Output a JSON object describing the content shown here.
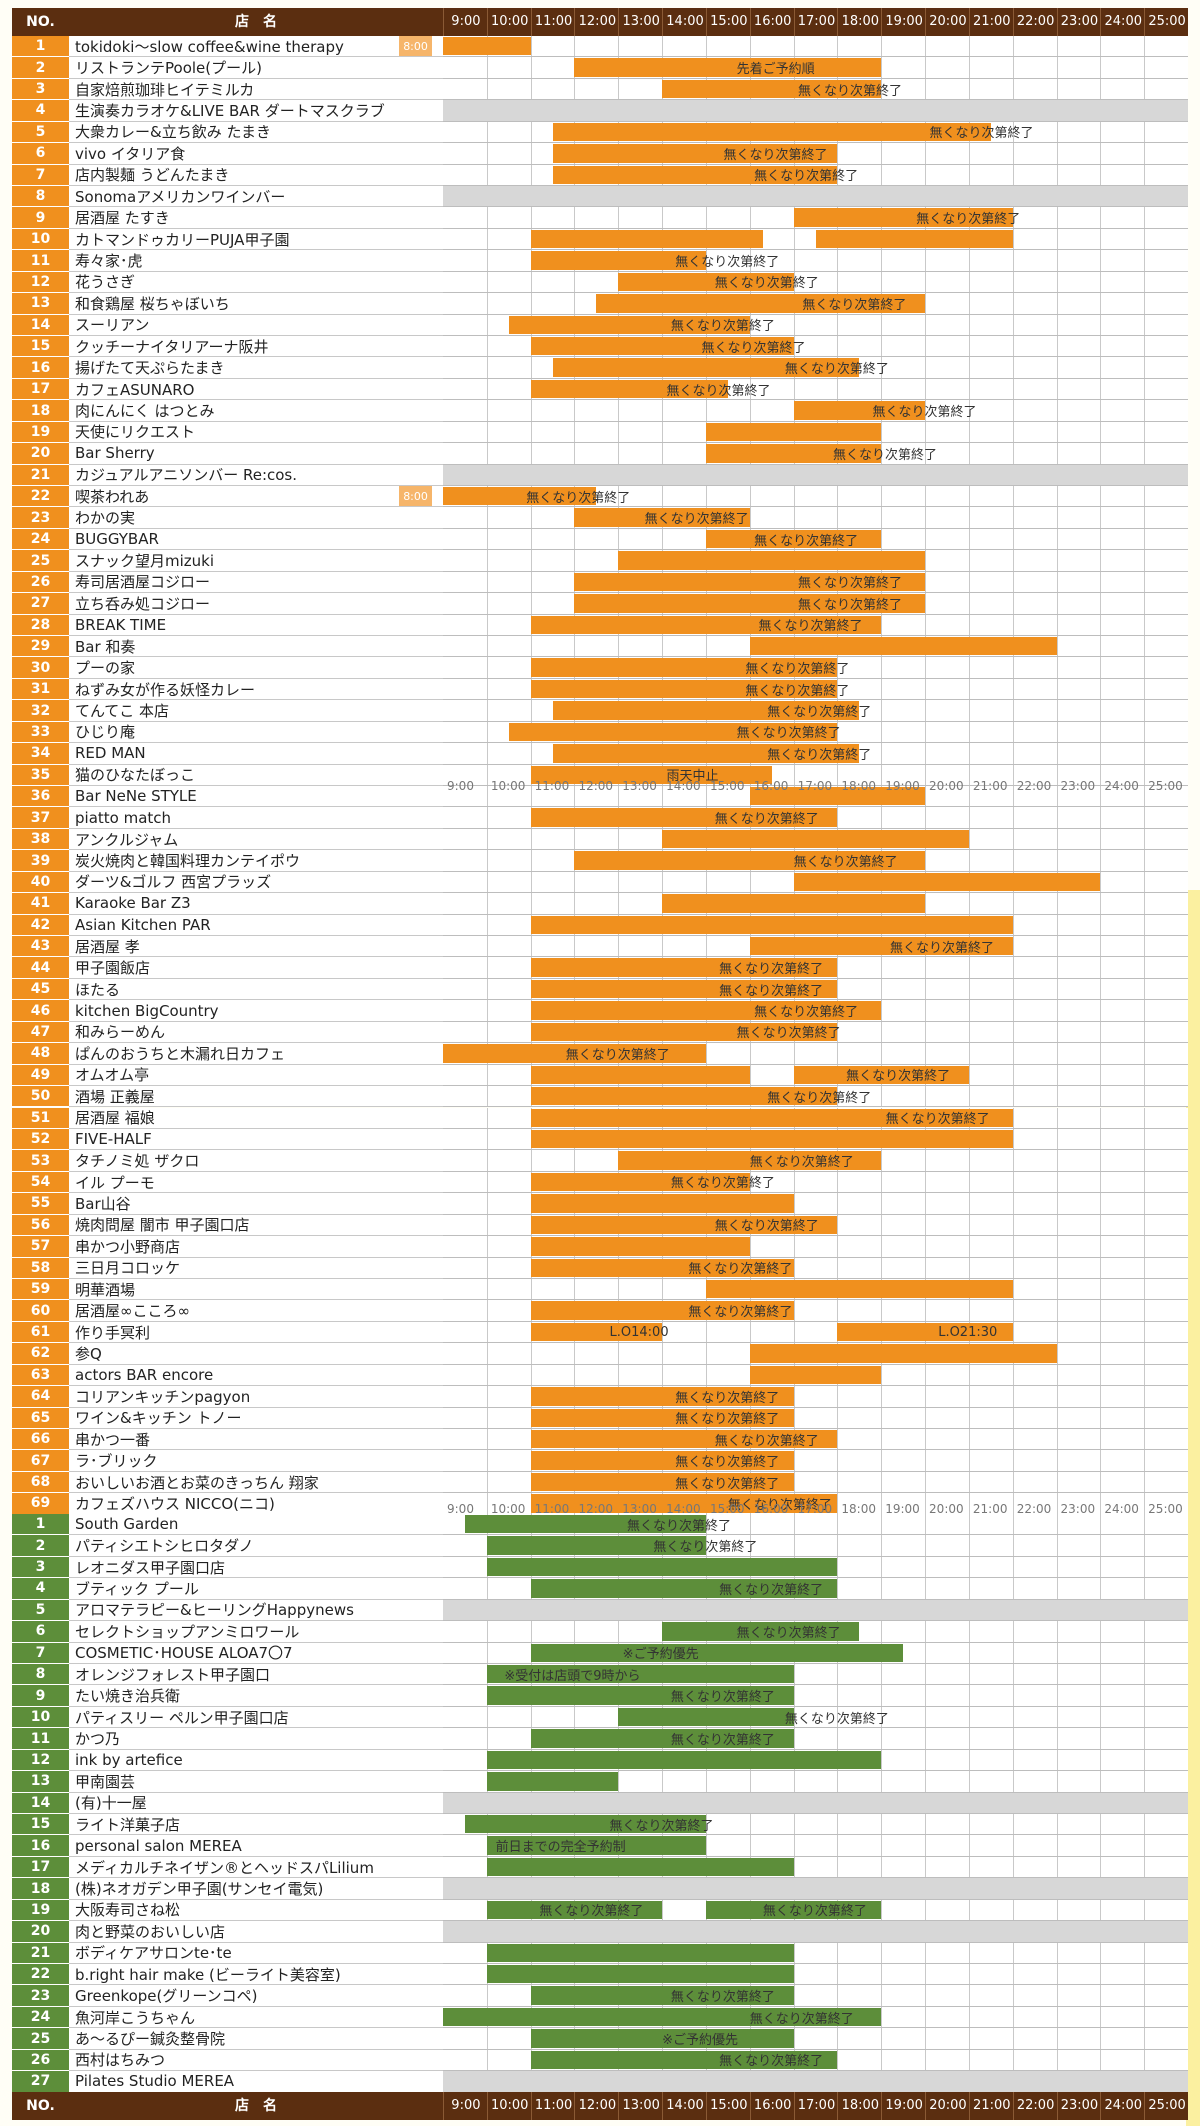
{
  "header": {
    "no": "NO.",
    "name": "店　名",
    "hours": [
      "9:00",
      "10:00",
      "11:00",
      "12:00",
      "13:00",
      "14:00",
      "15:00",
      "16:00",
      "17:00",
      "18:00",
      "19:00",
      "20:00",
      "21:00",
      "22:00",
      "23:00",
      "24:00",
      "25:00"
    ]
  },
  "colors": {
    "orange": "#f0901e",
    "green": "#5d8e3a",
    "header": "#5b2e10",
    "closed": "#d7d7d7"
  },
  "orange_rows": [
    {
      "no": "1",
      "name": "tokidoki～slow coffee&wine therapy",
      "bars": [
        [
          9,
          11
        ]
      ],
      "notes": [
        {
          "t": "8:00",
          "at": 8
        }
      ]
    },
    {
      "no": "2",
      "name": "リストランテPoole(プール)",
      "bars": [
        [
          12,
          19
        ]
      ],
      "notes": [
        {
          "t": "先着ご予約順",
          "at": 15.7
        }
      ]
    },
    {
      "no": "3",
      "name": "自家焙煎珈琲ヒイテミルカ",
      "bars": [
        [
          14,
          19
        ]
      ],
      "notes": [
        {
          "t": "無くなり次第終了",
          "at": 17.1
        }
      ]
    },
    {
      "no": "4",
      "name": "生演奏カラオケ&LIVE BAR ダートマスクラブ",
      "closed": true
    },
    {
      "no": "5",
      "name": "大衆カレー&立ち飲み たまき",
      "bars": [
        [
          11.5,
          21.5
        ]
      ],
      "notes": [
        {
          "t": "無くなり次第終了",
          "at": 20.1
        }
      ]
    },
    {
      "no": "6",
      "name": "vivo イタリア食",
      "bars": [
        [
          11.5,
          18
        ]
      ],
      "notes": [
        {
          "t": "無くなり次第終了",
          "at": 15.4
        }
      ]
    },
    {
      "no": "7",
      "name": "店内製麺 うどんたまき",
      "bars": [
        [
          11.5,
          18
        ]
      ],
      "notes": [
        {
          "t": "無くなり次第終了",
          "at": 16.1
        }
      ]
    },
    {
      "no": "8",
      "name": "Sonomaアメリカンワインバー",
      "closed": true
    },
    {
      "no": "9",
      "name": "居酒屋 たすき",
      "bars": [
        [
          17,
          22
        ]
      ],
      "notes": [
        {
          "t": "無くなり次第終了",
          "at": 19.8
        }
      ]
    },
    {
      "no": "10",
      "name": "カトマンドゥカリーPUJA甲子園",
      "bars": [
        [
          11,
          16.3
        ],
        [
          17.5,
          22
        ]
      ],
      "notes": []
    },
    {
      "no": "11",
      "name": "寿々家･虎",
      "bars": [
        [
          11,
          15
        ]
      ],
      "notes": [
        {
          "t": "無くなり次第終了",
          "at": 14.3
        }
      ]
    },
    {
      "no": "12",
      "name": "花うさぎ",
      "bars": [
        [
          13,
          17
        ]
      ],
      "notes": [
        {
          "t": "無くなり次第終了",
          "at": 15.2
        }
      ]
    },
    {
      "no": "13",
      "name": "和食鶏屋 桜ちゃぼいち",
      "bars": [
        [
          12.5,
          20
        ]
      ],
      "notes": [
        {
          "t": "無くなり次第終了",
          "at": 17.2
        }
      ]
    },
    {
      "no": "14",
      "name": "スーリアン",
      "bars": [
        [
          10.5,
          16
        ]
      ],
      "notes": [
        {
          "t": "無くなり次第終了",
          "at": 14.2
        }
      ]
    },
    {
      "no": "15",
      "name": "クッチーナイタリアーナ阪井",
      "bars": [
        [
          11,
          17
        ]
      ],
      "notes": [
        {
          "t": "無くなり次第終了",
          "at": 14.9
        }
      ]
    },
    {
      "no": "16",
      "name": "揚げたて天ぷらたまき",
      "bars": [
        [
          11.5,
          18.5
        ]
      ],
      "notes": [
        {
          "t": "無くなり次第終了",
          "at": 16.8
        }
      ]
    },
    {
      "no": "17",
      "name": "カフェASUNARO",
      "bars": [
        [
          11,
          15.5
        ]
      ],
      "notes": [
        {
          "t": "無くなり次第終了",
          "at": 14.1
        }
      ]
    },
    {
      "no": "18",
      "name": "肉にんにく はつとみ",
      "bars": [
        [
          17,
          20
        ]
      ],
      "notes": [
        {
          "t": "無くなり次第終了",
          "at": 18.8
        }
      ]
    },
    {
      "no": "19",
      "name": "天使にリクエスト",
      "bars": [
        [
          15,
          19
        ]
      ],
      "notes": []
    },
    {
      "no": "20",
      "name": "Bar Sherry",
      "bars": [
        [
          15,
          19
        ]
      ],
      "notes": [
        {
          "t": "無くなり次第終了",
          "at": 17.9
        }
      ]
    },
    {
      "no": "21",
      "name": "カジュアルアニソンバー Re:cos.",
      "closed": true
    },
    {
      "no": "22",
      "name": "喫茶われあ",
      "bars": [
        [
          9,
          12.5
        ]
      ],
      "notes": [
        {
          "t": "8:00",
          "at": 8
        },
        {
          "t": "無くなり次第終了",
          "at": 10.9
        }
      ]
    },
    {
      "no": "23",
      "name": "わかの実",
      "bars": [
        [
          12,
          16
        ]
      ],
      "notes": [
        {
          "t": "無くなり次第終了",
          "at": 13.6
        }
      ]
    },
    {
      "no": "24",
      "name": "BUGGYBAR",
      "bars": [
        [
          15,
          19
        ]
      ],
      "notes": [
        {
          "t": "無くなり次第終了",
          "at": 16.1
        }
      ]
    },
    {
      "no": "25",
      "name": "スナック望月mizuki",
      "bars": [
        [
          13,
          20
        ]
      ],
      "notes": []
    },
    {
      "no": "26",
      "name": "寿司居酒屋コジロー",
      "bars": [
        [
          12,
          20
        ]
      ],
      "notes": [
        {
          "t": "無くなり次第終了",
          "at": 17.1
        }
      ]
    },
    {
      "no": "27",
      "name": "立ち呑み処コジロー",
      "bars": [
        [
          12,
          20
        ]
      ],
      "notes": [
        {
          "t": "無くなり次第終了",
          "at": 17.1
        }
      ]
    },
    {
      "no": "28",
      "name": "BREAK TIME",
      "bars": [
        [
          11,
          19
        ]
      ],
      "notes": [
        {
          "t": "無くなり次第終了",
          "at": 16.2
        }
      ]
    },
    {
      "no": "29",
      "name": "Bar 和奏",
      "bars": [
        [
          16,
          23
        ]
      ],
      "notes": []
    },
    {
      "no": "30",
      "name": "プーの家",
      "bars": [
        [
          11,
          18
        ]
      ],
      "notes": [
        {
          "t": "無くなり次第終了",
          "at": 15.9
        }
      ]
    },
    {
      "no": "31",
      "name": "ねずみ女が作る妖怪カレー",
      "bars": [
        [
          11,
          18
        ]
      ],
      "notes": [
        {
          "t": "無くなり次第終了",
          "at": 15.9
        }
      ]
    },
    {
      "no": "32",
      "name": "てんてこ 本店",
      "bars": [
        [
          11.5,
          18.5
        ]
      ],
      "notes": [
        {
          "t": "無くなり次第終了",
          "at": 16.4
        }
      ]
    },
    {
      "no": "33",
      "name": "ひじり庵",
      "bars": [
        [
          10.5,
          18
        ]
      ],
      "notes": [
        {
          "t": "無くなり次第終了",
          "at": 15.7
        }
      ]
    },
    {
      "no": "34",
      "name": "RED MAN",
      "bars": [
        [
          11.5,
          18.5
        ]
      ],
      "notes": [
        {
          "t": "無くなり次第終了",
          "at": 16.4
        }
      ]
    },
    {
      "no": "35",
      "name": "猫のひなたぼっこ",
      "bars": [
        [
          11,
          16.5
        ]
      ],
      "notes": [
        {
          "t": "雨天中止",
          "at": 14.1
        }
      ]
    },
    {
      "no": "36",
      "name": "Bar NeNe STYLE",
      "bars": [
        [
          16,
          20
        ]
      ],
      "notes": []
    },
    {
      "no": "37",
      "name": "piatto match",
      "bars": [
        [
          11,
          18
        ]
      ],
      "notes": [
        {
          "t": "無くなり次第終了",
          "at": 15.2
        }
      ]
    },
    {
      "no": "38",
      "name": "アンクルジャム",
      "bars": [
        [
          14,
          21
        ]
      ],
      "notes": []
    },
    {
      "no": "39",
      "name": "炭火焼肉と韓国料理カンテイポウ",
      "bars": [
        [
          12,
          20
        ]
      ],
      "notes": [
        {
          "t": "無くなり次第終了",
          "at": 17
        }
      ]
    },
    {
      "no": "40",
      "name": "ダーツ&ゴルフ 西宮プラッズ",
      "bars": [
        [
          17,
          24
        ]
      ],
      "notes": []
    },
    {
      "no": "41",
      "name": "Karaoke Bar Z3",
      "bars": [
        [
          14,
          20
        ]
      ],
      "notes": []
    },
    {
      "no": "42",
      "name": "Asian Kitchen PAR",
      "bars": [
        [
          11,
          22
        ]
      ],
      "notes": []
    },
    {
      "no": "43",
      "name": "居酒屋 孝",
      "bars": [
        [
          16,
          22
        ]
      ],
      "notes": [
        {
          "t": "無くなり次第終了",
          "at": 19.2
        }
      ]
    },
    {
      "no": "44",
      "name": "甲子園飯店",
      "bars": [
        [
          11,
          18
        ]
      ],
      "notes": [
        {
          "t": "無くなり次第終了",
          "at": 15.3
        }
      ]
    },
    {
      "no": "45",
      "name": "ほたる",
      "bars": [
        [
          11,
          18
        ]
      ],
      "notes": [
        {
          "t": "無くなり次第終了",
          "at": 15.3
        }
      ]
    },
    {
      "no": "46",
      "name": "kitchen BigCountry",
      "bars": [
        [
          11,
          19
        ]
      ],
      "notes": [
        {
          "t": "無くなり次第終了",
          "at": 16.1
        }
      ]
    },
    {
      "no": "47",
      "name": "和みらーめん",
      "bars": [
        [
          11,
          18
        ]
      ],
      "notes": [
        {
          "t": "無くなり次第終了",
          "at": 15.7
        }
      ]
    },
    {
      "no": "48",
      "name": "ぱんのおうちと木漏れ日カフェ",
      "bars": [
        [
          9,
          15
        ]
      ],
      "notes": [
        {
          "t": "無くなり次第終了",
          "at": 11.8
        }
      ]
    },
    {
      "no": "49",
      "name": "オムオム亭",
      "bars": [
        [
          11,
          16
        ],
        [
          17,
          21
        ]
      ],
      "notes": [
        {
          "t": "無くなり次第終了",
          "at": 18.2
        }
      ]
    },
    {
      "no": "50",
      "name": "酒場 正義屋",
      "bars": [
        [
          11,
          18
        ]
      ],
      "notes": [
        {
          "t": "無くなり次第終了",
          "at": 16.4
        }
      ]
    },
    {
      "no": "51",
      "name": "居酒屋 福娘",
      "bars": [
        [
          11,
          22
        ]
      ],
      "notes": [
        {
          "t": "無くなり次第終了",
          "at": 19.1
        }
      ]
    },
    {
      "no": "52",
      "name": "FIVE-HALF",
      "bars": [
        [
          11,
          22
        ]
      ],
      "notes": []
    },
    {
      "no": "53",
      "name": "タチノミ処 ザクロ",
      "bars": [
        [
          13,
          19
        ]
      ],
      "notes": [
        {
          "t": "無くなり次第終了",
          "at": 16
        }
      ]
    },
    {
      "no": "54",
      "name": "イル プーモ",
      "bars": [
        [
          11,
          16
        ]
      ],
      "notes": [
        {
          "t": "無くなり次第終了",
          "at": 14.2
        }
      ]
    },
    {
      "no": "55",
      "name": "Bar山谷",
      "bars": [
        [
          11,
          17
        ]
      ],
      "notes": []
    },
    {
      "no": "56",
      "name": "焼肉問屋 闇市 甲子園口店",
      "bars": [
        [
          11,
          18
        ]
      ],
      "notes": [
        {
          "t": "無くなり次第終了",
          "at": 15.2
        }
      ]
    },
    {
      "no": "57",
      "name": "串かつ小野商店",
      "bars": [
        [
          11,
          16
        ]
      ],
      "notes": []
    },
    {
      "no": "58",
      "name": "三日月コロッケ",
      "bars": [
        [
          11,
          17
        ]
      ],
      "notes": [
        {
          "t": "無くなり次第終了",
          "at": 14.6
        }
      ]
    },
    {
      "no": "59",
      "name": "明華酒場",
      "bars": [
        [
          15,
          22
        ]
      ],
      "notes": []
    },
    {
      "no": "60",
      "name": "居酒屋∞こころ∞",
      "bars": [
        [
          11,
          17
        ]
      ],
      "notes": [
        {
          "t": "無くなり次第終了",
          "at": 14.6
        }
      ]
    },
    {
      "no": "61",
      "name": "作り手冥利",
      "bars": [
        [
          11,
          14
        ],
        [
          18,
          22
        ]
      ],
      "notes": [
        {
          "t": "L.O14:00",
          "at": 12.8
        },
        {
          "t": "L.O21:30",
          "at": 20.3
        }
      ]
    },
    {
      "no": "62",
      "name": "参Q",
      "bars": [
        [
          16,
          23
        ]
      ],
      "notes": []
    },
    {
      "no": "63",
      "name": "actors BAR encore",
      "bars": [
        [
          16,
          19
        ]
      ],
      "notes": []
    },
    {
      "no": "64",
      "name": "コリアンキッチンpagyon",
      "bars": [
        [
          11,
          17
        ]
      ],
      "notes": [
        {
          "t": "無くなり次第終了",
          "at": 14.3
        }
      ]
    },
    {
      "no": "65",
      "name": "ワイン&キッチン トノー",
      "bars": [
        [
          11,
          17
        ]
      ],
      "notes": [
        {
          "t": "無くなり次第終了",
          "at": 14.3
        }
      ]
    },
    {
      "no": "66",
      "name": "串かつ一番",
      "bars": [
        [
          11,
          18
        ]
      ],
      "notes": [
        {
          "t": "無くなり次第終了",
          "at": 15.2
        }
      ]
    },
    {
      "no": "67",
      "name": "ラ･ブリック",
      "bars": [
        [
          11,
          17
        ]
      ],
      "notes": [
        {
          "t": "無くなり次第終了",
          "at": 14.3
        }
      ]
    },
    {
      "no": "68",
      "name": "おいしいお酒とお菜のきっちん 翔家",
      "bars": [
        [
          11,
          17
        ]
      ],
      "notes": [
        {
          "t": "無くなり次第終了",
          "at": 14.3
        }
      ]
    },
    {
      "no": "69",
      "name": "カフェズハウス NICCO(ニコ)",
      "bars": [
        [
          11,
          18
        ]
      ],
      "notes": [
        {
          "t": "無くなり次第終了",
          "at": 15.5
        }
      ]
    }
  ],
  "green_rows": [
    {
      "no": "1",
      "name": "South Garden",
      "bars": [
        [
          9.5,
          15
        ]
      ],
      "notes": [
        {
          "t": "無くなり次第終了",
          "at": 13.2
        }
      ]
    },
    {
      "no": "2",
      "name": "パティシエトシヒロタダノ",
      "bars": [
        [
          10,
          15
        ]
      ],
      "notes": [
        {
          "t": "無くなり次第終了",
          "at": 13.8
        }
      ]
    },
    {
      "no": "3",
      "name": "レオニダス甲子園口店",
      "bars": [
        [
          10,
          18
        ]
      ],
      "notes": []
    },
    {
      "no": "4",
      "name": "ブティック プール",
      "bars": [
        [
          11,
          18
        ]
      ],
      "notes": [
        {
          "t": "無くなり次第終了",
          "at": 15.3
        }
      ]
    },
    {
      "no": "5",
      "name": "アロマテラピー&ヒーリングHappynews",
      "closed": true
    },
    {
      "no": "6",
      "name": "セレクトショップアンミロワール",
      "bars": [
        [
          14,
          18.5
        ]
      ],
      "notes": [
        {
          "t": "無くなり次第終了",
          "at": 15.7
        }
      ]
    },
    {
      "no": "7",
      "name": "COSMETIC･HOUSE ALOA7〇7",
      "bars": [
        [
          11,
          19.5
        ]
      ],
      "notes": [
        {
          "t": "※ご予約優先",
          "at": 13.1
        }
      ]
    },
    {
      "no": "8",
      "name": "オレンジフォレスト甲子園口",
      "bars": [
        [
          10,
          17
        ]
      ],
      "notes": [
        {
          "t": "※受付は店頭で9時から",
          "at": 10.4
        }
      ]
    },
    {
      "no": "9",
      "name": "たい焼き治兵衛",
      "bars": [
        [
          10,
          17
        ]
      ],
      "notes": [
        {
          "t": "無くなり次第終了",
          "at": 14.2
        }
      ]
    },
    {
      "no": "10",
      "name": "パティスリー ペルン甲子園口店",
      "bars": [
        [
          13,
          17
        ]
      ],
      "notes": [
        {
          "t": "無くなり次第終了",
          "at": 16.8
        }
      ]
    },
    {
      "no": "11",
      "name": "かつ乃",
      "bars": [
        [
          11,
          17
        ]
      ],
      "notes": [
        {
          "t": "無くなり次第終了",
          "at": 14.2
        }
      ]
    },
    {
      "no": "12",
      "name": "ink by artefice",
      "bars": [
        [
          10,
          19
        ]
      ],
      "notes": []
    },
    {
      "no": "13",
      "name": "甲南園芸",
      "bars": [
        [
          10,
          13
        ]
      ],
      "notes": []
    },
    {
      "no": "14",
      "name": "(有)十一屋",
      "closed": true
    },
    {
      "no": "15",
      "name": "ライト洋菓子店",
      "bars": [
        [
          9.5,
          15
        ]
      ],
      "notes": [
        {
          "t": "無くなり次第終了",
          "at": 12.8
        }
      ]
    },
    {
      "no": "16",
      "name": "personal salon MEREA",
      "bars": [
        [
          10,
          15
        ]
      ],
      "notes": [
        {
          "t": "前日までの完全予約制",
          "at": 10.2
        }
      ]
    },
    {
      "no": "17",
      "name": "メディカルチネイザン®とヘッドスパLilium",
      "bars": [
        [
          10,
          17
        ]
      ],
      "notes": []
    },
    {
      "no": "18",
      "name": "(株)ネオガデン甲子園(サンセイ電気)",
      "closed": true
    },
    {
      "no": "19",
      "name": "大阪寿司さね松",
      "bars": [
        [
          10,
          14
        ],
        [
          15,
          19
        ]
      ],
      "notes": [
        {
          "t": "無くなり次第終了",
          "at": 11.2
        },
        {
          "t": "無くなり次第終了",
          "at": 16.3
        }
      ]
    },
    {
      "no": "20",
      "name": "肉と野菜のおいしい店",
      "closed": true
    },
    {
      "no": "21",
      "name": "ボディケアサロンte･te",
      "bars": [
        [
          10,
          17
        ]
      ],
      "notes": []
    },
    {
      "no": "22",
      "name": "b.right hair make (ビーライト美容室)",
      "bars": [
        [
          10,
          17
        ]
      ],
      "notes": []
    },
    {
      "no": "23",
      "name": "Greenkope(グリーンコペ)",
      "bars": [
        [
          11,
          17
        ]
      ],
      "notes": [
        {
          "t": "無くなり次第終了",
          "at": 14.2
        }
      ]
    },
    {
      "no": "24",
      "name": "魚河岸こうちゃん",
      "bars": [
        [
          9,
          19
        ]
      ],
      "notes": [
        {
          "t": "無くなり次第終了",
          "at": 16
        }
      ]
    },
    {
      "no": "25",
      "name": "あ～るぴー鍼灸整骨院",
      "bars": [
        [
          11,
          17
        ]
      ],
      "notes": [
        {
          "t": "※ご予約優先",
          "at": 14
        }
      ]
    },
    {
      "no": "26",
      "name": "西村はちみつ",
      "bars": [
        [
          11,
          18
        ]
      ],
      "notes": [
        {
          "t": "無くなり次第終了",
          "at": 15.3
        }
      ]
    },
    {
      "no": "27",
      "name": "Pilates Studio MEREA",
      "closed": true
    }
  ]
}
